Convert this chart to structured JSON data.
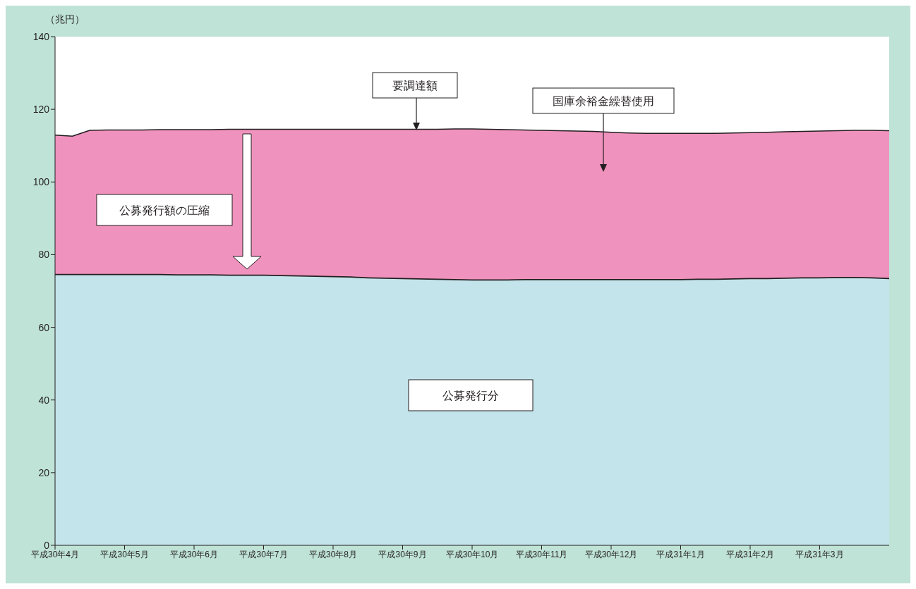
{
  "chart_data": {
    "type": "area",
    "stacked": true,
    "ylabel": "（兆円）",
    "legend": false,
    "grid": false,
    "categories": [
      "平成30年4月",
      null,
      null,
      null,
      "平成30年5月",
      null,
      null,
      null,
      "平成30年6月",
      null,
      null,
      null,
      "平成30年7月",
      null,
      null,
      null,
      "平成30年8月",
      null,
      null,
      null,
      "平成30年9月",
      null,
      null,
      null,
      "平成30年10月",
      null,
      null,
      null,
      "平成30年11月",
      null,
      null,
      null,
      "平成30年12月",
      null,
      null,
      null,
      "平成31年1月",
      null,
      null,
      null,
      "平成31年2月",
      null,
      null,
      null,
      "平成31年3月",
      null,
      null,
      null,
      null
    ],
    "series": [
      {
        "color": "#c3e4ea",
        "values": [
          74.7,
          74.7,
          74.7,
          74.7,
          74.7,
          74.7,
          74.7,
          74.6,
          74.6,
          74.6,
          74.5,
          74.5,
          74.5,
          74.4,
          74.3,
          74.2,
          74.1,
          74.0,
          73.8,
          73.7,
          73.6,
          73.5,
          73.4,
          73.3,
          73.2,
          73.2,
          73.2,
          73.3,
          73.3,
          73.3,
          73.3,
          73.3,
          73.3,
          73.3,
          73.3,
          73.3,
          73.3,
          73.4,
          73.4,
          73.5,
          73.6,
          73.6,
          73.7,
          73.8,
          73.8,
          73.9,
          73.9,
          73.8,
          73.6
        ]
      },
      {
        "color": "#ef92bd",
        "values": [
          38.2,
          37.9,
          39.5,
          39.6,
          39.6,
          39.6,
          39.7,
          39.8,
          39.8,
          39.8,
          40.0,
          40.0,
          40.0,
          40.1,
          40.2,
          40.3,
          40.4,
          40.5,
          40.7,
          40.8,
          40.9,
          41.0,
          41.1,
          41.3,
          41.4,
          41.3,
          41.2,
          41.0,
          40.9,
          40.8,
          40.7,
          40.6,
          40.4,
          40.2,
          40.1,
          40.1,
          40.1,
          40.0,
          40.0,
          40.0,
          40.0,
          40.1,
          40.1,
          40.1,
          40.2,
          40.2,
          40.3,
          40.4,
          40.5
        ]
      }
    ],
    "ylim": [
      0,
      140
    ],
    "yticks": [
      0,
      20,
      40,
      60,
      80,
      100,
      120,
      140
    ],
    "annotations": [
      "要調達額",
      "国庫余裕金繰替使用",
      "公募発行額の圧縮",
      "公募発行分"
    ]
  }
}
